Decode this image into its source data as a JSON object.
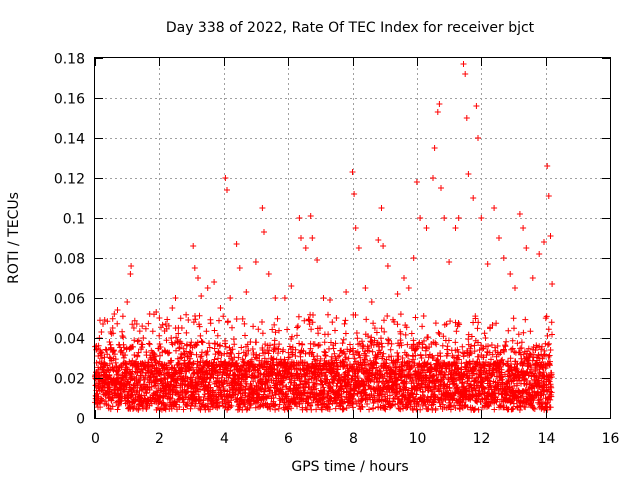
{
  "chart_data": {
    "type": "scatter",
    "title": "Day 338 of 2022, Rate Of TEC Index for receiver bjct",
    "xlabel": "GPS time / hours",
    "ylabel": "ROTI / TECUs",
    "xlim": [
      0,
      16
    ],
    "ylim": [
      0,
      0.18
    ],
    "xticks": [
      0,
      2,
      4,
      6,
      8,
      10,
      12,
      14,
      16
    ],
    "xtick_labels": [
      "0",
      "2",
      "4",
      "6",
      "8",
      "10",
      "12",
      "14",
      "16"
    ],
    "yticks": [
      0,
      0.02,
      0.04,
      0.06,
      0.08,
      0.1,
      0.12,
      0.14,
      0.16,
      0.18
    ],
    "ytick_labels": [
      "0",
      "0.02",
      "0.04",
      "0.06",
      "0.08",
      "0.1",
      "0.12",
      "0.14",
      "0.16",
      "0.18"
    ],
    "grid": true,
    "marker": "+",
    "color": "#ff0000",
    "data_coverage_hours": [
      0.0,
      14.2
    ],
    "series": [
      {
        "name": "ROTI",
        "points": [
          [
            0.05,
            0.036
          ],
          [
            0.1,
            0.031
          ],
          [
            0.15,
            0.028
          ],
          [
            0.2,
            0.043
          ],
          [
            0.25,
            0.047
          ],
          [
            0.3,
            0.049
          ],
          [
            0.45,
            0.038
          ],
          [
            0.55,
            0.045
          ],
          [
            0.6,
            0.052
          ],
          [
            0.7,
            0.054
          ],
          [
            0.85,
            0.041
          ],
          [
            1.0,
            0.058
          ],
          [
            1.1,
            0.072
          ],
          [
            1.12,
            0.076
          ],
          [
            1.3,
            0.047
          ],
          [
            1.5,
            0.04
          ],
          [
            1.7,
            0.052
          ],
          [
            1.9,
            0.053
          ],
          [
            2.0,
            0.05
          ],
          [
            2.2,
            0.047
          ],
          [
            2.4,
            0.055
          ],
          [
            2.5,
            0.06
          ],
          [
            2.7,
            0.045
          ],
          [
            2.9,
            0.049
          ],
          [
            3.05,
            0.086
          ],
          [
            3.1,
            0.075
          ],
          [
            3.2,
            0.07
          ],
          [
            3.3,
            0.061
          ],
          [
            3.5,
            0.065
          ],
          [
            3.7,
            0.068
          ],
          [
            3.9,
            0.055
          ],
          [
            4.05,
            0.12
          ],
          [
            4.1,
            0.114
          ],
          [
            4.2,
            0.06
          ],
          [
            4.4,
            0.087
          ],
          [
            4.5,
            0.075
          ],
          [
            4.7,
            0.063
          ],
          [
            5.0,
            0.078
          ],
          [
            5.2,
            0.105
          ],
          [
            5.25,
            0.093
          ],
          [
            5.4,
            0.072
          ],
          [
            5.6,
            0.06
          ],
          [
            5.9,
            0.06
          ],
          [
            6.1,
            0.066
          ],
          [
            6.35,
            0.1
          ],
          [
            6.4,
            0.09
          ],
          [
            6.55,
            0.085
          ],
          [
            6.7,
            0.101
          ],
          [
            6.75,
            0.09
          ],
          [
            6.9,
            0.079
          ],
          [
            7.1,
            0.06
          ],
          [
            7.3,
            0.059
          ],
          [
            7.5,
            0.05
          ],
          [
            7.8,
            0.063
          ],
          [
            8.0,
            0.123
          ],
          [
            8.05,
            0.112
          ],
          [
            8.1,
            0.095
          ],
          [
            8.2,
            0.085
          ],
          [
            8.4,
            0.065
          ],
          [
            8.6,
            0.058
          ],
          [
            8.8,
            0.089
          ],
          [
            8.9,
            0.105
          ],
          [
            8.95,
            0.086
          ],
          [
            9.1,
            0.076
          ],
          [
            9.4,
            0.062
          ],
          [
            9.6,
            0.07
          ],
          [
            9.75,
            0.065
          ],
          [
            9.9,
            0.08
          ],
          [
            10.0,
            0.118
          ],
          [
            10.1,
            0.1
          ],
          [
            10.3,
            0.095
          ],
          [
            10.5,
            0.12
          ],
          [
            10.55,
            0.135
          ],
          [
            10.65,
            0.153
          ],
          [
            10.7,
            0.157
          ],
          [
            10.75,
            0.115
          ],
          [
            10.85,
            0.1
          ],
          [
            11.0,
            0.078
          ],
          [
            11.2,
            0.095
          ],
          [
            11.3,
            0.1
          ],
          [
            11.45,
            0.177
          ],
          [
            11.5,
            0.172
          ],
          [
            11.55,
            0.15
          ],
          [
            11.6,
            0.122
          ],
          [
            11.75,
            0.11
          ],
          [
            11.85,
            0.156
          ],
          [
            11.9,
            0.14
          ],
          [
            12.0,
            0.1
          ],
          [
            12.2,
            0.077
          ],
          [
            12.4,
            0.105
          ],
          [
            12.55,
            0.09
          ],
          [
            12.7,
            0.08
          ],
          [
            12.9,
            0.072
          ],
          [
            13.05,
            0.065
          ],
          [
            13.2,
            0.102
          ],
          [
            13.3,
            0.095
          ],
          [
            13.4,
            0.085
          ],
          [
            13.6,
            0.07
          ],
          [
            13.8,
            0.082
          ],
          [
            13.95,
            0.088
          ],
          [
            14.05,
            0.126
          ],
          [
            14.1,
            0.111
          ],
          [
            14.15,
            0.091
          ],
          [
            14.2,
            0.067
          ]
        ]
      }
    ]
  }
}
